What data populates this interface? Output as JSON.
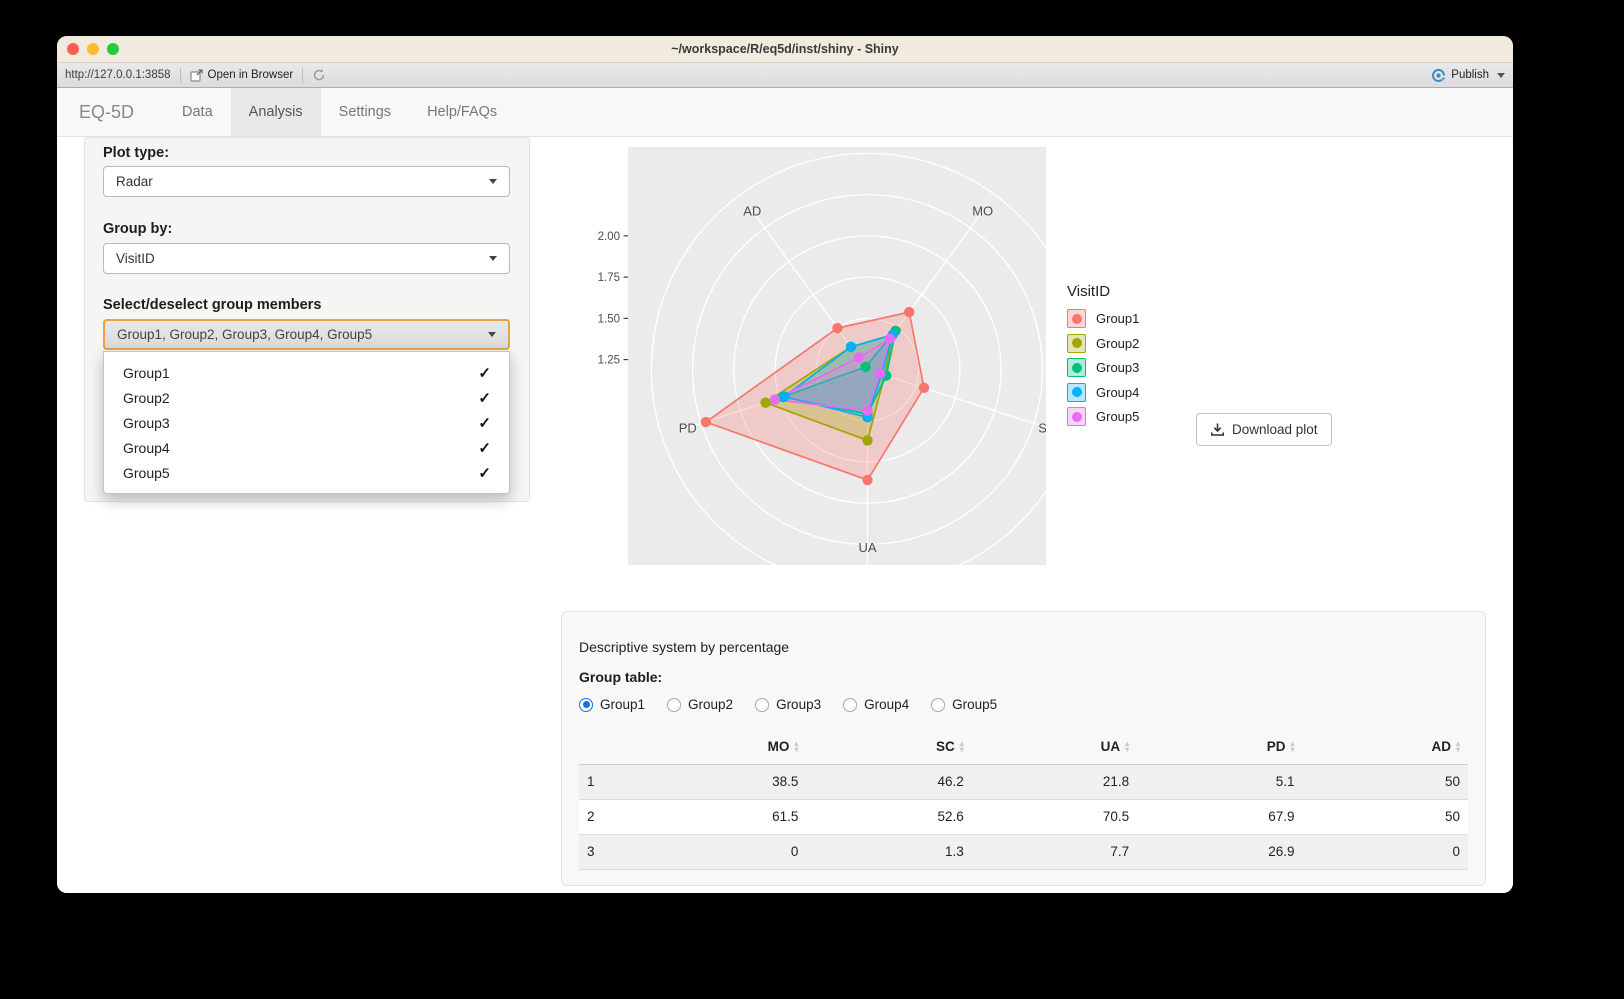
{
  "window": {
    "title": "~/workspace/R/eq5d/inst/shiny - Shiny"
  },
  "toolbar": {
    "url": "http://127.0.0.1:3858",
    "open_in_browser": "Open in Browser",
    "publish": "Publish"
  },
  "navbar": {
    "brand": "EQ-5D",
    "tabs": [
      {
        "label": "Data",
        "active": false
      },
      {
        "label": "Analysis",
        "active": true
      },
      {
        "label": "Settings",
        "active": false
      },
      {
        "label": "Help/FAQs",
        "active": false
      }
    ]
  },
  "sidebar": {
    "plot_type_label": "Plot type:",
    "plot_type_value": "Radar",
    "group_by_label": "Group by:",
    "group_by_value": "VisitID",
    "members_label": "Select/deselect group members",
    "members_value": "Group1, Group2, Group3, Group4, Group5",
    "dropdown_items": [
      {
        "label": "Group1",
        "checked": true
      },
      {
        "label": "Group2",
        "checked": true
      },
      {
        "label": "Group3",
        "checked": true
      },
      {
        "label": "Group4",
        "checked": true
      },
      {
        "label": "Group5",
        "checked": true
      }
    ]
  },
  "chart_data": {
    "type": "radar",
    "axes": [
      "MO",
      "SC",
      "UA",
      "PD",
      "AD"
    ],
    "axis_angles_deg": [
      36,
      108,
      180,
      252,
      324
    ],
    "radial_ticks": [
      1.25,
      1.5,
      1.75,
      2.0
    ],
    "scale_min": 1.19,
    "legend_title": "VisitID",
    "panel_color": "#EBEBEB",
    "series": [
      {
        "name": "Group1",
        "color": "#F8766D",
        "values": [
          1.62,
          1.55,
          1.86,
          2.22,
          1.5
        ]
      },
      {
        "name": "Group2",
        "color": "#A3A500",
        "values": [
          1.45,
          1.3,
          1.62,
          1.84,
          1.36
        ]
      },
      {
        "name": "Group3",
        "color": "#00BF7D",
        "values": [
          1.48,
          1.31,
          1.46,
          1.73,
          1.21
        ]
      },
      {
        "name": "Group4",
        "color": "#00B0F6",
        "values": [
          1.45,
          1.28,
          1.48,
          1.72,
          1.36
        ]
      },
      {
        "name": "Group5",
        "color": "#E76BF3",
        "values": [
          1.42,
          1.27,
          1.44,
          1.78,
          1.28
        ]
      }
    ]
  },
  "plot": {
    "download_label": "Download plot"
  },
  "table_panel": {
    "title": "Descriptive system by percentage",
    "group_table_label": "Group table:",
    "radio_options": [
      {
        "label": "Group1",
        "selected": true
      },
      {
        "label": "Group2",
        "selected": false
      },
      {
        "label": "Group3",
        "selected": false
      },
      {
        "label": "Group4",
        "selected": false
      },
      {
        "label": "Group5",
        "selected": false
      }
    ],
    "columns": [
      "MO",
      "SC",
      "UA",
      "PD",
      "AD"
    ],
    "rows": [
      {
        "name": "1",
        "values": [
          "38.5",
          "46.2",
          "21.8",
          "5.1",
          "50"
        ]
      },
      {
        "name": "2",
        "values": [
          "61.5",
          "52.6",
          "70.5",
          "67.9",
          "50"
        ]
      },
      {
        "name": "3",
        "values": [
          "0",
          "1.3",
          "7.7",
          "26.9",
          "0"
        ]
      }
    ]
  }
}
